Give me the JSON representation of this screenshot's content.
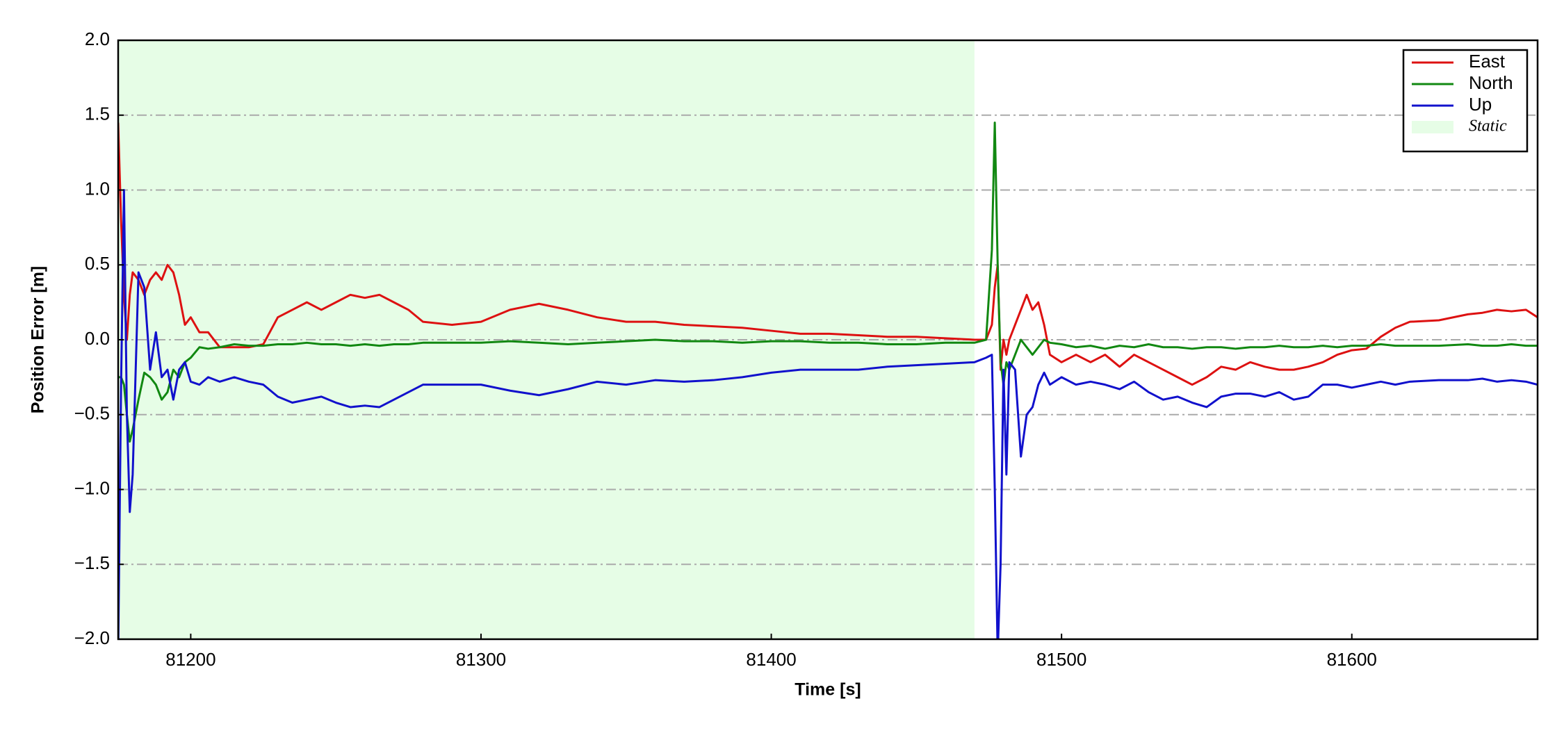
{
  "chart_data": {
    "type": "line",
    "x_label": "Time [s]",
    "y_label": "Position Error [m]",
    "x": [
      81175,
      81176,
      81177,
      81178,
      81179,
      81180,
      81182,
      81184,
      81186,
      81188,
      81190,
      81192,
      81194,
      81196,
      81198,
      81200,
      81203,
      81206,
      81210,
      81215,
      81220,
      81225,
      81230,
      81235,
      81240,
      81245,
      81250,
      81255,
      81260,
      81265,
      81270,
      81275,
      81280,
      81290,
      81300,
      81310,
      81320,
      81330,
      81340,
      81350,
      81360,
      81370,
      81380,
      81390,
      81400,
      81410,
      81420,
      81430,
      81440,
      81450,
      81460,
      81470,
      81474,
      81476,
      81477,
      81478,
      81479,
      81480,
      81481,
      81482,
      81484,
      81486,
      81488,
      81490,
      81492,
      81494,
      81496,
      81500,
      81505,
      81510,
      81515,
      81520,
      81525,
      81530,
      81535,
      81540,
      81545,
      81550,
      81555,
      81560,
      81565,
      81570,
      81575,
      81580,
      81585,
      81590,
      81595,
      81600,
      81605,
      81610,
      81615,
      81620,
      81630,
      81640,
      81645,
      81650,
      81655,
      81660,
      81664
    ],
    "series": [
      {
        "name": "East",
        "color": "#dd1111",
        "values": [
          1.45,
          0.8,
          0.3,
          0.0,
          0.3,
          0.45,
          0.4,
          0.3,
          0.4,
          0.45,
          0.4,
          0.5,
          0.45,
          0.3,
          0.1,
          0.15,
          0.05,
          0.05,
          -0.05,
          -0.05,
          -0.05,
          -0.03,
          0.15,
          0.2,
          0.25,
          0.2,
          0.25,
          0.3,
          0.28,
          0.3,
          0.25,
          0.2,
          0.12,
          0.1,
          0.12,
          0.2,
          0.24,
          0.2,
          0.15,
          0.12,
          0.12,
          0.1,
          0.09,
          0.08,
          0.06,
          0.04,
          0.04,
          0.03,
          0.02,
          0.02,
          0.01,
          0.0,
          0.0,
          0.1,
          0.35,
          0.5,
          -0.2,
          0.0,
          -0.1,
          0.0,
          0.1,
          0.2,
          0.3,
          0.2,
          0.25,
          0.1,
          -0.1,
          -0.15,
          -0.1,
          -0.15,
          -0.1,
          -0.18,
          -0.1,
          -0.15,
          -0.2,
          -0.25,
          -0.3,
          -0.25,
          -0.18,
          -0.2,
          -0.15,
          -0.18,
          -0.2,
          -0.2,
          -0.18,
          -0.15,
          -0.1,
          -0.07,
          -0.06,
          0.02,
          0.08,
          0.12,
          0.13,
          0.17,
          0.18,
          0.2,
          0.19,
          0.2,
          0.15
        ]
      },
      {
        "name": "North",
        "color": "#118811",
        "values": [
          -0.25,
          -0.25,
          -0.3,
          -0.5,
          -0.68,
          -0.6,
          -0.4,
          -0.22,
          -0.25,
          -0.3,
          -0.4,
          -0.35,
          -0.2,
          -0.25,
          -0.15,
          -0.12,
          -0.05,
          -0.06,
          -0.05,
          -0.03,
          -0.04,
          -0.04,
          -0.03,
          -0.03,
          -0.02,
          -0.03,
          -0.03,
          -0.04,
          -0.03,
          -0.04,
          -0.03,
          -0.03,
          -0.02,
          -0.02,
          -0.02,
          -0.01,
          -0.02,
          -0.03,
          -0.02,
          -0.01,
          0.0,
          -0.01,
          -0.01,
          -0.02,
          -0.01,
          -0.01,
          -0.02,
          -0.02,
          -0.03,
          -0.03,
          -0.02,
          -0.02,
          0.0,
          0.6,
          1.45,
          0.5,
          -0.15,
          -0.3,
          -0.15,
          -0.2,
          -0.1,
          0.0,
          -0.05,
          -0.1,
          -0.05,
          0.0,
          -0.02,
          -0.03,
          -0.05,
          -0.04,
          -0.06,
          -0.04,
          -0.05,
          -0.03,
          -0.05,
          -0.05,
          -0.06,
          -0.05,
          -0.05,
          -0.06,
          -0.05,
          -0.05,
          -0.04,
          -0.05,
          -0.05,
          -0.04,
          -0.05,
          -0.04,
          -0.04,
          -0.03,
          -0.04,
          -0.04,
          -0.04,
          -0.03,
          -0.04,
          -0.04,
          -0.03,
          -0.04,
          -0.04
        ]
      },
      {
        "name": "Up",
        "color": "#1111cc",
        "values": [
          -2.1,
          -0.3,
          1.0,
          -0.5,
          -1.15,
          -0.9,
          0.45,
          0.35,
          -0.2,
          0.05,
          -0.25,
          -0.2,
          -0.4,
          -0.2,
          -0.15,
          -0.28,
          -0.3,
          -0.25,
          -0.28,
          -0.25,
          -0.28,
          -0.3,
          -0.38,
          -0.42,
          -0.4,
          -0.38,
          -0.42,
          -0.45,
          -0.44,
          -0.45,
          -0.4,
          -0.35,
          -0.3,
          -0.3,
          -0.3,
          -0.34,
          -0.37,
          -0.33,
          -0.28,
          -0.3,
          -0.27,
          -0.28,
          -0.27,
          -0.25,
          -0.22,
          -0.2,
          -0.2,
          -0.2,
          -0.18,
          -0.17,
          -0.16,
          -0.15,
          -0.12,
          -0.1,
          -1.0,
          -2.1,
          -1.5,
          -0.2,
          -0.9,
          -0.15,
          -0.2,
          -0.78,
          -0.5,
          -0.45,
          -0.3,
          -0.22,
          -0.3,
          -0.25,
          -0.3,
          -0.28,
          -0.3,
          -0.33,
          -0.28,
          -0.35,
          -0.4,
          -0.38,
          -0.42,
          -0.45,
          -0.38,
          -0.36,
          -0.36,
          -0.38,
          -0.35,
          -0.4,
          -0.38,
          -0.3,
          -0.3,
          -0.32,
          -0.3,
          -0.28,
          -0.3,
          -0.28,
          -0.27,
          -0.27,
          -0.26,
          -0.28,
          -0.27,
          -0.28,
          -0.3
        ]
      }
    ],
    "shaded_region": {
      "name": "Static",
      "color": "#e6fde6",
      "x": [
        81175,
        81470
      ]
    },
    "xlim": [
      81175,
      81664
    ],
    "xticks": [
      81200,
      81300,
      81400,
      81500,
      81600
    ],
    "ylim": [
      -2,
      2
    ],
    "yticks": [
      {
        "value": -2,
        "label": "−2.0"
      },
      {
        "value": -1.5,
        "label": "−1.5"
      },
      {
        "value": -1,
        "label": "−1.0"
      },
      {
        "value": -0.5,
        "label": "−0.5"
      },
      {
        "value": 0,
        "label": "0.0"
      },
      {
        "value": 0.5,
        "label": "0.5"
      },
      {
        "value": 1,
        "label": "1.0"
      },
      {
        "value": 1.5,
        "label": "1.5"
      },
      {
        "value": 2,
        "label": "2.0"
      }
    ],
    "grid": true,
    "legend": "upper right"
  }
}
